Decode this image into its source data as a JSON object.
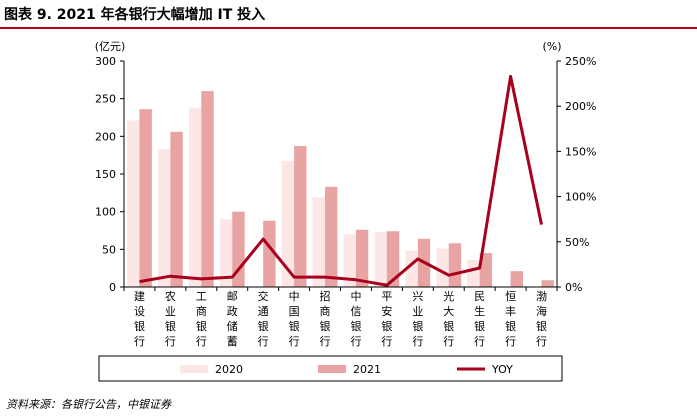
{
  "title": "图表 9. 2021 年各银行大幅增加 IT 投入",
  "source": "资料来源：各银行公告，中银证券",
  "colors": {
    "series_2020": "#fce6e6",
    "series_2021": "#e8a3a3",
    "yoy": "#a8001c",
    "axis": "#000000",
    "accent": "#b3001b"
  },
  "chart_data": {
    "type": "bar",
    "title": "图表 9. 2021 年各银行大幅增加 IT 投入",
    "categories": [
      "建设银行",
      "农业银行",
      "工商银行",
      "邮政储蓄",
      "交通银行",
      "中国银行",
      "招商银行",
      "中信银行",
      "平安银行",
      "兴业银行",
      "光大银行",
      "民生银行",
      "恒丰银行",
      "渤海银行"
    ],
    "series": [
      {
        "name": "2020",
        "type": "bar",
        "axis": "left",
        "values": [
          221,
          183,
          238,
          90,
          0,
          167,
          119,
          70,
          73,
          48,
          51,
          36,
          0,
          0
        ]
      },
      {
        "name": "2021",
        "type": "bar",
        "axis": "left",
        "values": [
          236,
          206,
          260,
          100,
          88,
          187,
          133,
          76,
          74,
          64,
          58,
          45,
          21,
          9
        ]
      },
      {
        "name": "YOY",
        "type": "line",
        "axis": "right",
        "values": [
          6,
          12,
          9,
          11,
          53,
          11,
          11,
          8,
          2,
          31,
          13,
          21,
          233,
          69
        ]
      }
    ],
    "y_left": {
      "label": "(亿元)",
      "min": 0,
      "max": 300,
      "ticks": [
        "0",
        "50",
        "100",
        "150",
        "200",
        "250",
        "300"
      ]
    },
    "y_right": {
      "label": "(%)",
      "min": 0,
      "max": 250,
      "ticks": [
        "0%",
        "50%",
        "100%",
        "150%",
        "200%",
        "250%"
      ]
    },
    "legend": {
      "position": "bottom",
      "entries": [
        "2020",
        "2021",
        "YOY"
      ]
    }
  }
}
